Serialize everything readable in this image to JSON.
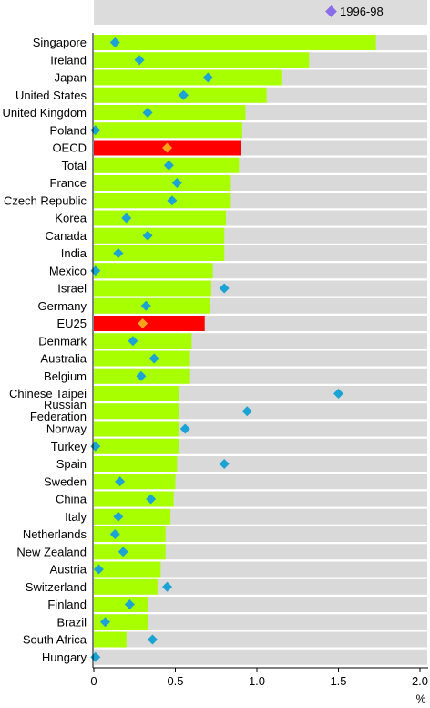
{
  "chart_data": {
    "type": "bar",
    "orientation": "horizontal",
    "categories": [
      "Singapore",
      "Ireland",
      "Japan",
      "United States",
      "United Kingdom",
      "Poland",
      "OECD",
      "Total",
      "France",
      "Czech Republic",
      "Korea",
      "Canada",
      "India",
      "Mexico",
      "Israel",
      "Germany",
      "EU25",
      "Denmark",
      "Australia",
      "Belgium",
      "Chinese Taipei",
      "Russian Federation",
      "Norway",
      "Turkey",
      "Spain",
      "Sweden",
      "China",
      "Italy",
      "Netherlands",
      "New Zealand",
      "Austria",
      "Switzerland",
      "Finland",
      "Brazil",
      "South Africa",
      "Hungary"
    ],
    "values": [
      1.73,
      1.32,
      1.15,
      1.06,
      0.93,
      0.91,
      0.9,
      0.89,
      0.84,
      0.84,
      0.81,
      0.8,
      0.8,
      0.73,
      0.72,
      0.71,
      0.68,
      0.6,
      0.59,
      0.59,
      0.52,
      0.52,
      0.52,
      0.52,
      0.51,
      0.5,
      0.49,
      0.47,
      0.44,
      0.44,
      0.41,
      0.39,
      0.33,
      0.33,
      0.2,
      0.0
    ],
    "markers": [
      0.13,
      0.28,
      0.7,
      0.55,
      0.33,
      0.01,
      0.45,
      0.46,
      0.51,
      0.48,
      0.2,
      0.33,
      0.15,
      0.01,
      0.8,
      0.32,
      0.3,
      0.24,
      0.37,
      0.29,
      1.5,
      0.94,
      0.56,
      0.01,
      0.8,
      0.16,
      0.35,
      0.15,
      0.13,
      0.18,
      0.03,
      0.45,
      0.22,
      0.07,
      0.36,
      0.01
    ],
    "highlight": [
      "OECD",
      "EU25"
    ],
    "legend": [
      {
        "name": "1996-98",
        "marker": "diamond",
        "color": "#8a6ee8"
      }
    ],
    "legend_position": "top",
    "xlabel": "%",
    "xlim": [
      0,
      2.0
    ],
    "xticks": [
      "0",
      "0.5",
      "1.0",
      "1.5",
      "2.0"
    ],
    "grid": false,
    "colors": {
      "bar": "#a8ff00",
      "bar_highlight": "#ff0000",
      "background_band": "#d9d9d9",
      "marker": "#1aa3d4",
      "marker_highlight": "#ffa21a"
    }
  }
}
